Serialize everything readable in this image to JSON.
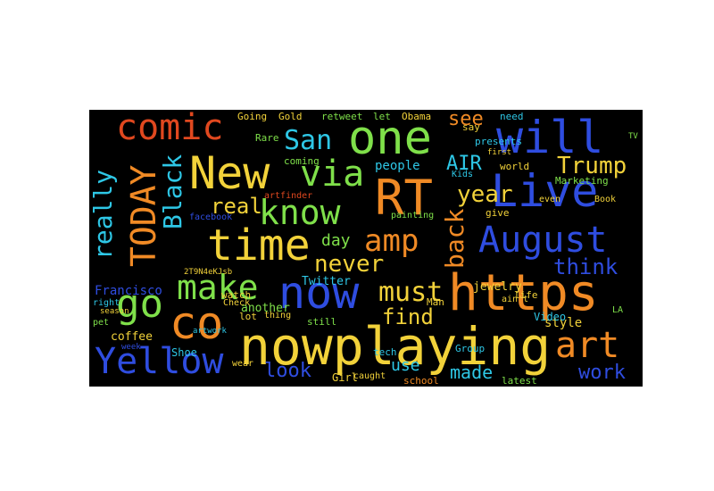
{
  "wordcloud": {
    "words": [
      {
        "text": "nowplaying",
        "color": "#f2d23a"
      },
      {
        "text": "https",
        "color": "#f08a25"
      },
      {
        "text": "RT",
        "color": "#f08a25"
      },
      {
        "text": "one",
        "color": "#7fe04a"
      },
      {
        "text": "New",
        "color": "#f2d23a"
      },
      {
        "text": "time",
        "color": "#f2d23a"
      },
      {
        "text": "now",
        "color": "#2f4de0"
      },
      {
        "text": "will",
        "color": "#2f4de0"
      },
      {
        "text": "Live",
        "color": "#2f4de0"
      },
      {
        "text": "co",
        "color": "#f08a25"
      },
      {
        "text": "make",
        "color": "#7fe04a"
      },
      {
        "text": "know",
        "color": "#7fe04a"
      },
      {
        "text": "via",
        "color": "#7fe04a"
      },
      {
        "text": "comic",
        "color": "#e0481f"
      },
      {
        "text": "amp",
        "color": "#f08a25"
      },
      {
        "text": "August",
        "color": "#2f4de0"
      },
      {
        "text": "art",
        "color": "#f08a25"
      },
      {
        "text": "Yellow",
        "color": "#2f4de0"
      },
      {
        "text": "go",
        "color": "#7fe04a"
      },
      {
        "text": "TODAY",
        "color": "#f08a25"
      },
      {
        "text": "Trump",
        "color": "#f2d23a"
      },
      {
        "text": "San",
        "color": "#2ec7e6"
      },
      {
        "text": "must",
        "color": "#f2d23a"
      },
      {
        "text": "never",
        "color": "#f2d23a"
      },
      {
        "text": "really",
        "color": "#2ec7e6"
      },
      {
        "text": "Black",
        "color": "#2ec7e6"
      },
      {
        "text": "back",
        "color": "#f08a25"
      },
      {
        "text": "real",
        "color": "#f2d23a"
      },
      {
        "text": "year",
        "color": "#f2d23a"
      },
      {
        "text": "think",
        "color": "#2f4de0"
      },
      {
        "text": "find",
        "color": "#f2d23a"
      },
      {
        "text": "look",
        "color": "#2f4de0"
      },
      {
        "text": "see",
        "color": "#f08a25"
      },
      {
        "text": "AIR",
        "color": "#2ec7e6"
      },
      {
        "text": "work",
        "color": "#2f4de0"
      },
      {
        "text": "made",
        "color": "#2ec7e6"
      },
      {
        "text": "day",
        "color": "#7fe04a"
      },
      {
        "text": "use",
        "color": "#2ec7e6"
      },
      {
        "text": "people",
        "color": "#2ec7e6"
      },
      {
        "text": "Francisco",
        "color": "#2f4de0"
      },
      {
        "text": "another",
        "color": "#7fe04a"
      },
      {
        "text": "Twitter",
        "color": "#2ec7e6"
      },
      {
        "text": "jewelry",
        "color": "#f2d23a"
      },
      {
        "text": "style",
        "color": "#f2d23a"
      },
      {
        "text": "coffee",
        "color": "#f2d23a"
      },
      {
        "text": "Video",
        "color": "#2ec7e6"
      },
      {
        "text": "Shoe",
        "color": "#2ec7e6"
      },
      {
        "text": "Girl",
        "color": "#f2d23a"
      },
      {
        "text": "watch",
        "color": "#f2d23a"
      },
      {
        "text": "lot",
        "color": "#f2d23a"
      },
      {
        "text": "still",
        "color": "#7fe04a"
      },
      {
        "text": "Man",
        "color": "#f2d23a"
      },
      {
        "text": "Group",
        "color": "#2ec7e6"
      },
      {
        "text": "latest",
        "color": "#7fe04a"
      },
      {
        "text": "school",
        "color": "#f08a25"
      },
      {
        "text": "tech",
        "color": "#2ec7e6"
      },
      {
        "text": "world",
        "color": "#f2d23a"
      },
      {
        "text": "Marketing",
        "color": "#7fe04a"
      },
      {
        "text": "give",
        "color": "#f2d23a"
      },
      {
        "text": "life",
        "color": "#f2d23a"
      },
      {
        "text": "need",
        "color": "#2ec7e6"
      },
      {
        "text": "presents",
        "color": "#2ec7e6"
      },
      {
        "text": "say",
        "color": "#f2d23a"
      },
      {
        "text": "Obama",
        "color": "#f2d23a"
      },
      {
        "text": "retweet",
        "color": "#7fe04a"
      },
      {
        "text": "let",
        "color": "#7fe04a"
      },
      {
        "text": "Gold",
        "color": "#f2d23a"
      },
      {
        "text": "Going",
        "color": "#f2d23a"
      },
      {
        "text": "Rare",
        "color": "#7fe04a"
      },
      {
        "text": "coming",
        "color": "#7fe04a"
      },
      {
        "text": "facebook",
        "color": "#2f4de0"
      },
      {
        "text": "artfinder",
        "color": "#e0481f"
      },
      {
        "text": "painting",
        "color": "#7fe04a"
      },
      {
        "text": "Check",
        "color": "#f2d23a"
      },
      {
        "text": "right",
        "color": "#2ec7e6"
      },
      {
        "text": "pet",
        "color": "#7fe04a"
      },
      {
        "text": "week",
        "color": "#2f4de0"
      },
      {
        "text": "artwork",
        "color": "#2ec7e6"
      },
      {
        "text": "wear",
        "color": "#f2d23a"
      },
      {
        "text": "thing",
        "color": "#f2d23a"
      },
      {
        "text": "caught",
        "color": "#f2d23a"
      },
      {
        "text": "Book",
        "color": "#f2d23a"
      },
      {
        "text": "even",
        "color": "#f2d23a"
      },
      {
        "text": "Kids",
        "color": "#2ec7e6"
      },
      {
        "text": "first",
        "color": "#f2d23a"
      },
      {
        "text": "season",
        "color": "#f2d23a"
      },
      {
        "text": "LA",
        "color": "#7fe04a"
      },
      {
        "text": "TV",
        "color": "#7fe04a"
      },
      {
        "text": "2T9N4eKJsb",
        "color": "#f2d23a"
      },
      {
        "text": "ain't",
        "color": "#f2d23a"
      }
    ]
  }
}
